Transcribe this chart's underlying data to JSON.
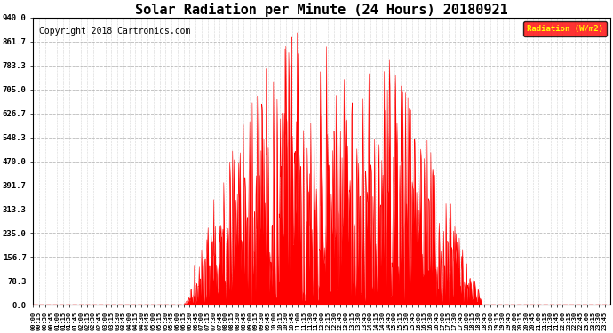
{
  "title": "Solar Radiation per Minute (24 Hours) 20180921",
  "copyright": "Copyright 2018 Cartronics.com",
  "legend_label": "Radiation (W/m2)",
  "y_ticks": [
    0.0,
    78.3,
    156.7,
    235.0,
    313.3,
    391.7,
    470.0,
    548.3,
    626.7,
    705.0,
    783.3,
    861.7,
    940.0
  ],
  "ylim": [
    0.0,
    940.0
  ],
  "bar_color": "#FF0000",
  "legend_bg": "#FF0000",
  "legend_text_color": "#FFFF00",
  "bg_color": "#FFFFFF",
  "grid_color": "#AAAAAA",
  "title_fontsize": 11,
  "copyright_fontsize": 7,
  "x_tick_interval_minutes": 15,
  "total_minutes": 1440,
  "sunrise": 375,
  "sunset": 1120
}
